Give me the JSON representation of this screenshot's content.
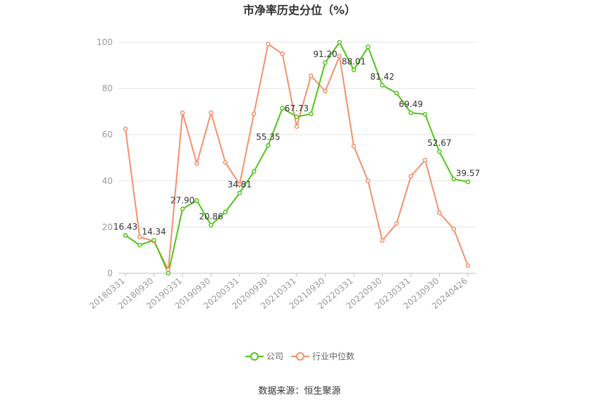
{
  "chart_data": {
    "type": "line",
    "title": "市净率历史分位（%）",
    "source": "数据来源：恒生聚源",
    "ylim": [
      0,
      100
    ],
    "yticks": [
      0,
      20,
      40,
      60,
      80,
      100
    ],
    "grid": true,
    "legend_position": "bottom",
    "xtick_labels": [
      "20180331",
      "20180930",
      "20190331",
      "20190930",
      "20200331",
      "20200930",
      "20210331",
      "20210930",
      "20220331",
      "20220930",
      "20230331",
      "20230930",
      "20240426"
    ],
    "x": [
      "20180331",
      "20180630",
      "20180930",
      "20181231",
      "20190331",
      "20190630",
      "20190930",
      "20191231",
      "20200331",
      "20200630",
      "20200930",
      "20201231",
      "20210331",
      "20210630",
      "20210930",
      "20211231",
      "20220331",
      "20220630",
      "20220930",
      "20221231",
      "20230331",
      "20230630",
      "20230930",
      "20231231",
      "20240426"
    ],
    "series": [
      {
        "name": "公司",
        "color": "#52c41a",
        "values": [
          16.43,
          12.2,
          14.34,
          0.0,
          27.9,
          31.5,
          20.86,
          26.5,
          34.81,
          44.0,
          55.35,
          71.5,
          67.73,
          69.0,
          91.2,
          100.0,
          88.01,
          98.0,
          81.42,
          78.0,
          69.49,
          68.8,
          52.67,
          40.8,
          39.57
        ],
        "labels": {
          "0": "16.43",
          "2": "14.34",
          "4": "27.90",
          "6": "20.86",
          "8": "34.81",
          "10": "55.35",
          "12": "67.73",
          "14": "91.20",
          "16": "88.01",
          "18": "81.42",
          "20": "69.49",
          "22": "52.67",
          "24": "39.57"
        }
      },
      {
        "name": "行业中位数",
        "color": "#f4916a",
        "values": [
          62.5,
          15.7,
          13.9,
          1.5,
          69.5,
          47.5,
          69.5,
          48.0,
          38.5,
          69.0,
          99.2,
          95.0,
          63.5,
          85.5,
          78.8,
          94.0,
          55.0,
          40.0,
          14.2,
          21.5,
          42.0,
          49.0,
          26.2,
          19.2,
          3.3
        ]
      }
    ]
  }
}
